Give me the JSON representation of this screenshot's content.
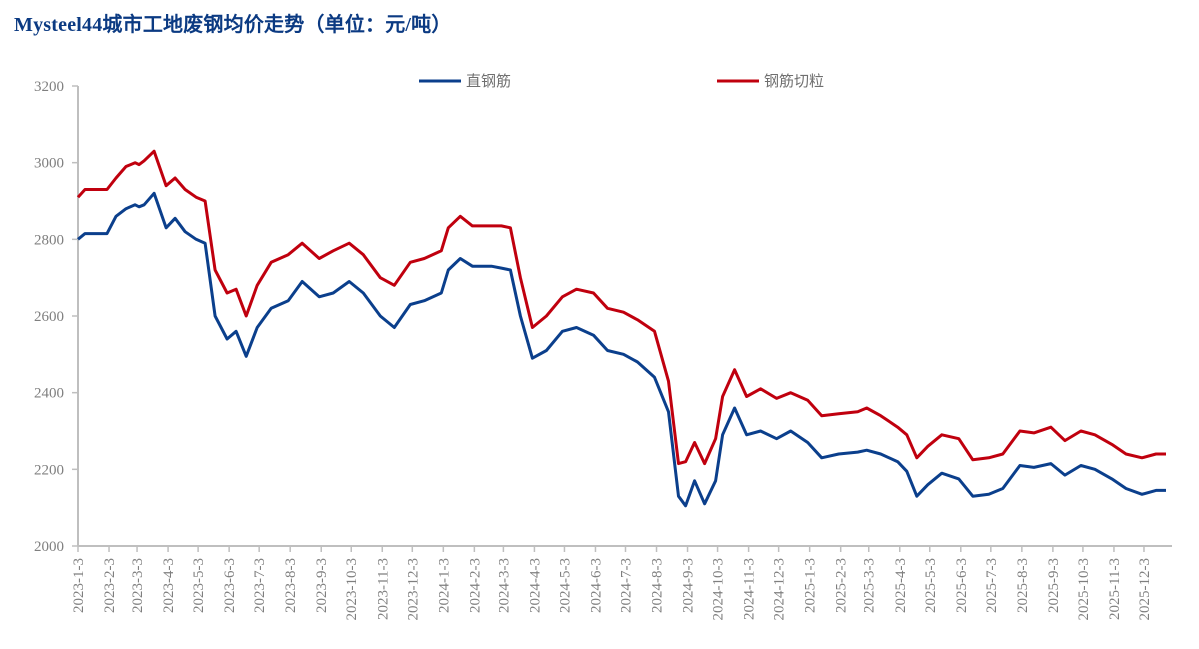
{
  "title": "Mysteel44城市工地废钢均价走势（单位：元/吨）",
  "legend": [
    {
      "name": "直钢筋",
      "color": "#0b3f8c"
    },
    {
      "name": "钢筋切粒",
      "color": "#c0000e"
    }
  ],
  "chart_data": {
    "type": "line",
    "title": "Mysteel44城市工地废钢均价走势（单位：元/吨）",
    "xlabel": "",
    "ylabel": "元/吨",
    "ylim": [
      2000,
      3200
    ],
    "yticks": [
      2000,
      2200,
      2400,
      2600,
      2800,
      3000,
      3200
    ],
    "grid": false,
    "legend_position": "top",
    "x_tick_labels": [
      "2023-1-3",
      "2023-2-3",
      "2023-3-3",
      "2023-4-3",
      "2023-5-3",
      "2023-6-3",
      "2023-7-3",
      "2023-8-3",
      "2023-9-3",
      "2023-10-3",
      "2023-11-3",
      "2023-12-3",
      "2024-1-3",
      "2024-2-3",
      "2024-3-3",
      "2024-4-3",
      "2024-5-3",
      "2024-6-3",
      "2024-7-3",
      "2024-8-3",
      "2024-9-3",
      "2024-10-3",
      "2024-11-3",
      "2024-12-3",
      "2025-1-3",
      "2025-2-3",
      "2025-3-3",
      "2025-4-3",
      "2025-5-3",
      "2025-6-3",
      "2025-7-3",
      "2025-8-3",
      "2025-9-3",
      "2025-10-3",
      "2025-11-3",
      "2025-12-3"
    ],
    "x": [
      "2023-01-03",
      "2023-01-10",
      "2023-01-20",
      "2023-02-01",
      "2023-02-10",
      "2023-02-20",
      "2023-03-01",
      "2023-03-05",
      "2023-03-10",
      "2023-03-20",
      "2023-04-01",
      "2023-04-10",
      "2023-04-20",
      "2023-05-01",
      "2023-05-10",
      "2023-05-20",
      "2023-06-01",
      "2023-06-10",
      "2023-06-20",
      "2023-07-01",
      "2023-07-15",
      "2023-08-01",
      "2023-08-15",
      "2023-09-01",
      "2023-09-15",
      "2023-10-01",
      "2023-10-15",
      "2023-11-01",
      "2023-11-15",
      "2023-12-01",
      "2023-12-15",
      "2024-01-01",
      "2024-01-08",
      "2024-01-20",
      "2024-02-01",
      "2024-02-20",
      "2024-03-01",
      "2024-03-10",
      "2024-03-20",
      "2024-04-01",
      "2024-04-15",
      "2024-05-01",
      "2024-05-15",
      "2024-06-01",
      "2024-06-15",
      "2024-07-01",
      "2024-07-15",
      "2024-08-01",
      "2024-08-15",
      "2024-08-25",
      "2024-09-01",
      "2024-09-10",
      "2024-09-20",
      "2024-10-01",
      "2024-10-08",
      "2024-10-20",
      "2024-11-01",
      "2024-11-15",
      "2024-12-01",
      "2024-12-15",
      "2025-01-01",
      "2025-01-15",
      "2025-02-01",
      "2025-02-20",
      "2025-03-01",
      "2025-03-15",
      "2025-04-01",
      "2025-04-10",
      "2025-04-20",
      "2025-05-01",
      "2025-05-15",
      "2025-06-01",
      "2025-06-15",
      "2025-07-01",
      "2025-07-15",
      "2025-08-01",
      "2025-08-15",
      "2025-09-01",
      "2025-09-15",
      "2025-10-01",
      "2025-10-15",
      "2025-11-01",
      "2025-11-15",
      "2025-12-01",
      "2025-12-15",
      "2025-12-25"
    ],
    "series": [
      {
        "name": "直钢筋",
        "color": "#0b3f8c",
        "values": [
          2800,
          2815,
          2815,
          2815,
          2860,
          2880,
          2890,
          2885,
          2890,
          2920,
          2830,
          2855,
          2820,
          2800,
          2790,
          2600,
          2540,
          2560,
          2495,
          2570,
          2620,
          2640,
          2690,
          2650,
          2660,
          2690,
          2660,
          2600,
          2570,
          2630,
          2640,
          2660,
          2720,
          2750,
          2730,
          2730,
          2725,
          2720,
          2600,
          2490,
          2510,
          2560,
          2570,
          2550,
          2510,
          2500,
          2480,
          2440,
          2350,
          2130,
          2105,
          2170,
          2110,
          2170,
          2290,
          2360,
          2290,
          2300,
          2280,
          2300,
          2270,
          2230,
          2240,
          2245,
          2250,
          2240,
          2220,
          2195,
          2130,
          2160,
          2190,
          2175,
          2130,
          2135,
          2150,
          2210,
          2205,
          2215,
          2185,
          2210,
          2200,
          2175,
          2150,
          2135,
          2145,
          2145
        ]
      },
      {
        "name": "钢筋切粒",
        "color": "#c0000e",
        "values": [
          2910,
          2930,
          2930,
          2930,
          2960,
          2990,
          3000,
          2995,
          3005,
          3030,
          2940,
          2960,
          2930,
          2910,
          2900,
          2720,
          2660,
          2670,
          2600,
          2680,
          2740,
          2760,
          2790,
          2750,
          2770,
          2790,
          2760,
          2700,
          2680,
          2740,
          2750,
          2770,
          2830,
          2860,
          2835,
          2835,
          2835,
          2830,
          2700,
          2570,
          2600,
          2650,
          2670,
          2660,
          2620,
          2610,
          2590,
          2560,
          2430,
          2215,
          2220,
          2270,
          2215,
          2280,
          2390,
          2460,
          2390,
          2410,
          2385,
          2400,
          2380,
          2340,
          2345,
          2350,
          2360,
          2340,
          2310,
          2290,
          2230,
          2260,
          2290,
          2280,
          2225,
          2230,
          2240,
          2300,
          2295,
          2310,
          2275,
          2300,
          2290,
          2265,
          2240,
          2230,
          2240,
          2240
        ]
      }
    ]
  }
}
